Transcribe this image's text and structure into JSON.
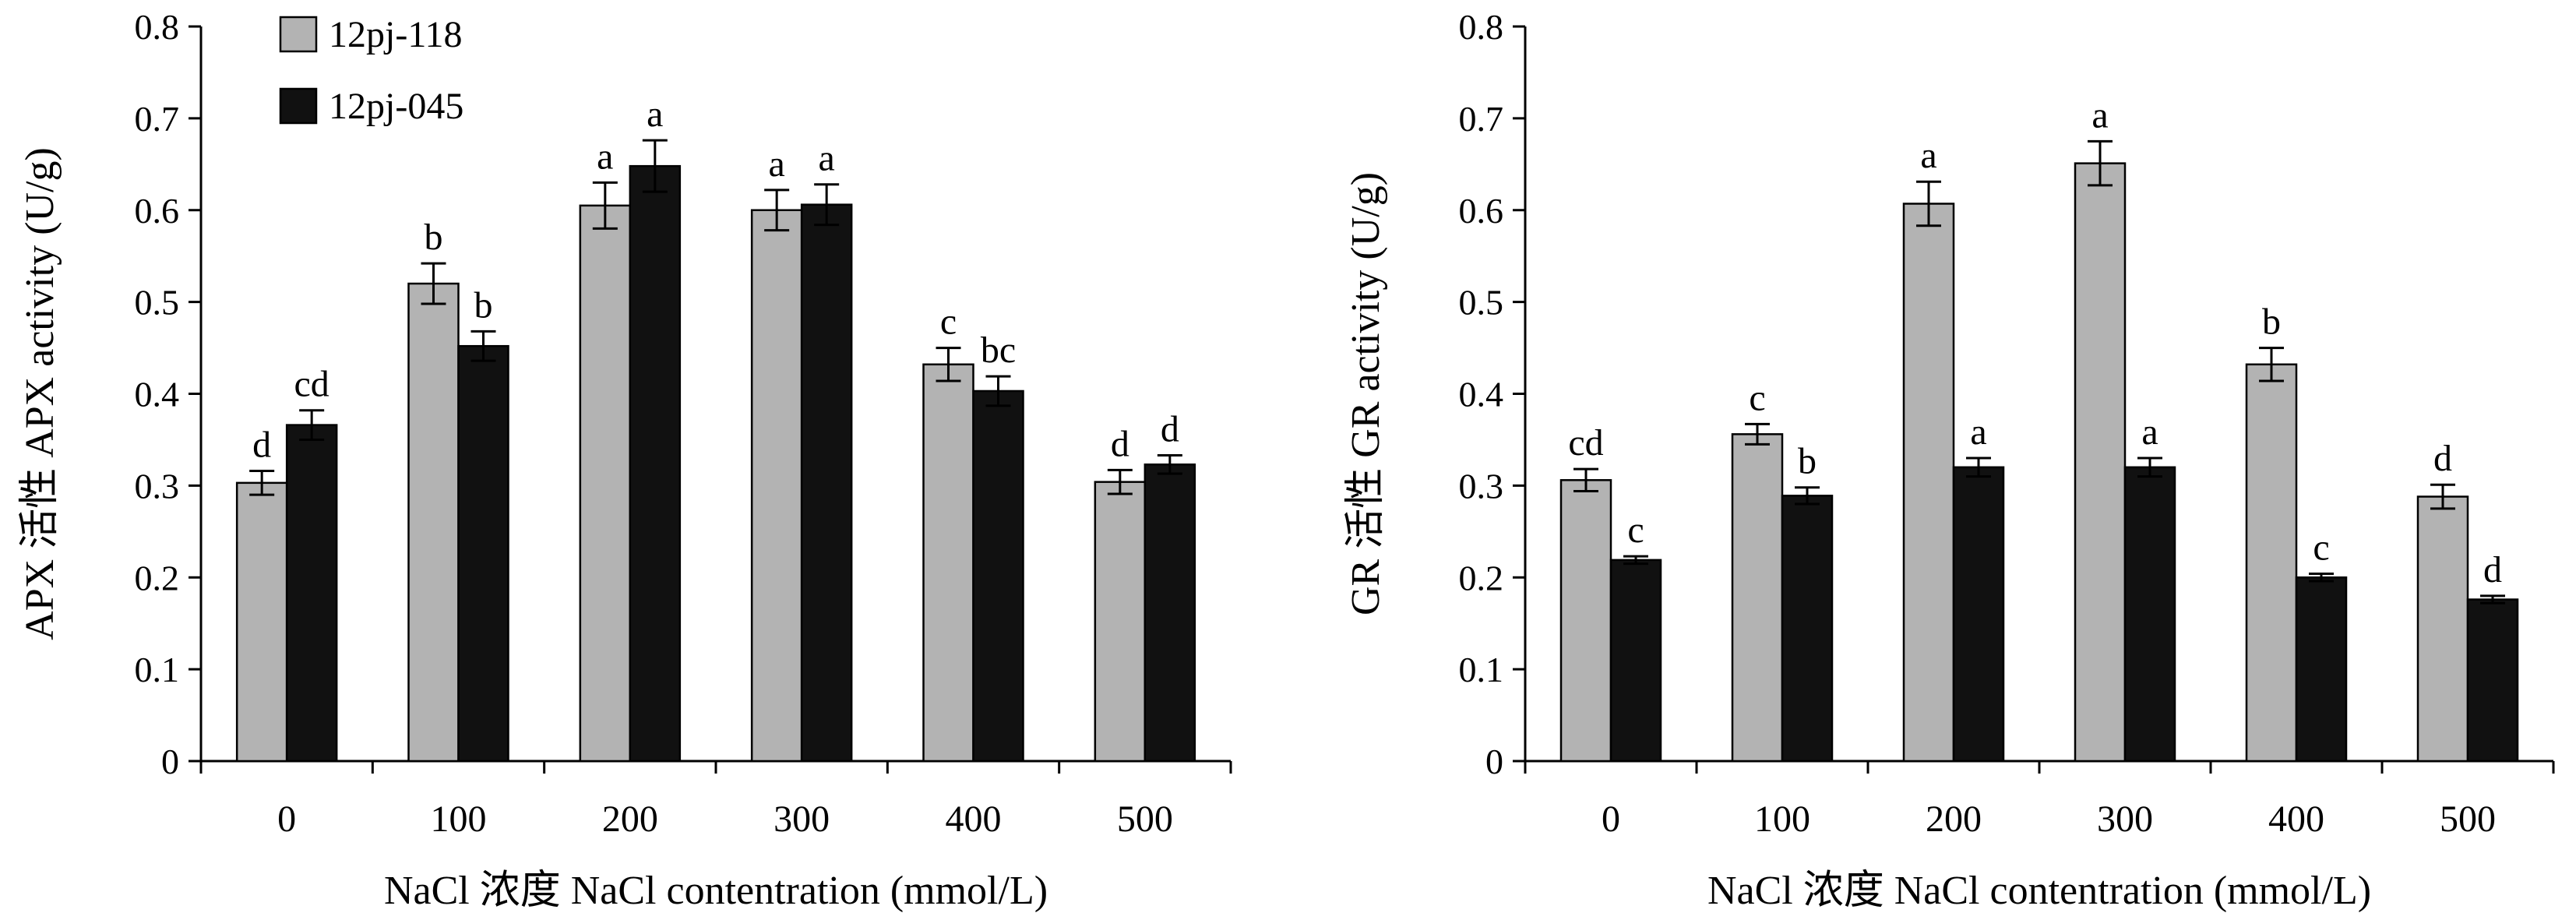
{
  "colors": {
    "series_a": "#b3b3b3",
    "series_b": "#111111",
    "axis": "#000000"
  },
  "chart_data": [
    {
      "type": "bar",
      "categories": [
        "0",
        "100",
        "200",
        "300",
        "400",
        "500"
      ],
      "xlabel": "NaCl 浓度 NaCl contentration (mmol/L)",
      "ylabel": "APX 活性 APX activity (U/g)",
      "ylim": [
        0,
        0.8
      ],
      "yticks": [
        "0",
        "0.1",
        "0.2",
        "0.3",
        "0.4",
        "0.5",
        "0.6",
        "0.7",
        "0.8"
      ],
      "legend": {
        "position": "top-left",
        "entries": [
          "12pj-118",
          "12pj-045"
        ]
      },
      "series": [
        {
          "name": "12pj-118",
          "values": [
            0.303,
            0.52,
            0.605,
            0.6,
            0.432,
            0.304
          ],
          "errors": [
            0.013,
            0.022,
            0.025,
            0.022,
            0.018,
            0.013
          ],
          "labels": [
            "d",
            "b",
            "a",
            "a",
            "c",
            "d"
          ]
        },
        {
          "name": "12pj-045",
          "values": [
            0.366,
            0.452,
            0.648,
            0.606,
            0.403,
            0.323
          ],
          "errors": [
            0.016,
            0.016,
            0.028,
            0.022,
            0.016,
            0.01
          ],
          "labels": [
            "cd",
            "b",
            "a",
            "a",
            "bc",
            "d"
          ]
        }
      ]
    },
    {
      "type": "bar",
      "categories": [
        "0",
        "100",
        "200",
        "300",
        "400",
        "500"
      ],
      "xlabel": "NaCl 浓度 NaCl contentration (mmol/L)",
      "ylabel": "GR 活性 GR activity (U/g)",
      "ylim": [
        0,
        0.8
      ],
      "yticks": [
        "0",
        "0.1",
        "0.2",
        "0.3",
        "0.4",
        "0.5",
        "0.6",
        "0.7",
        "0.8"
      ],
      "series": [
        {
          "name": "12pj-118",
          "values": [
            0.306,
            0.356,
            0.607,
            0.651,
            0.432,
            0.288
          ],
          "errors": [
            0.012,
            0.011,
            0.024,
            0.024,
            0.018,
            0.013
          ],
          "labels": [
            "cd",
            "c",
            "a",
            "a",
            "b",
            "d"
          ]
        },
        {
          "name": "12pj-045",
          "values": [
            0.219,
            0.289,
            0.32,
            0.32,
            0.2,
            0.176
          ],
          "errors": [
            0.004,
            0.009,
            0.01,
            0.01,
            0.004,
            0.004
          ],
          "labels": [
            "c",
            "b",
            "a",
            "a",
            "c",
            "d"
          ]
        }
      ]
    }
  ]
}
